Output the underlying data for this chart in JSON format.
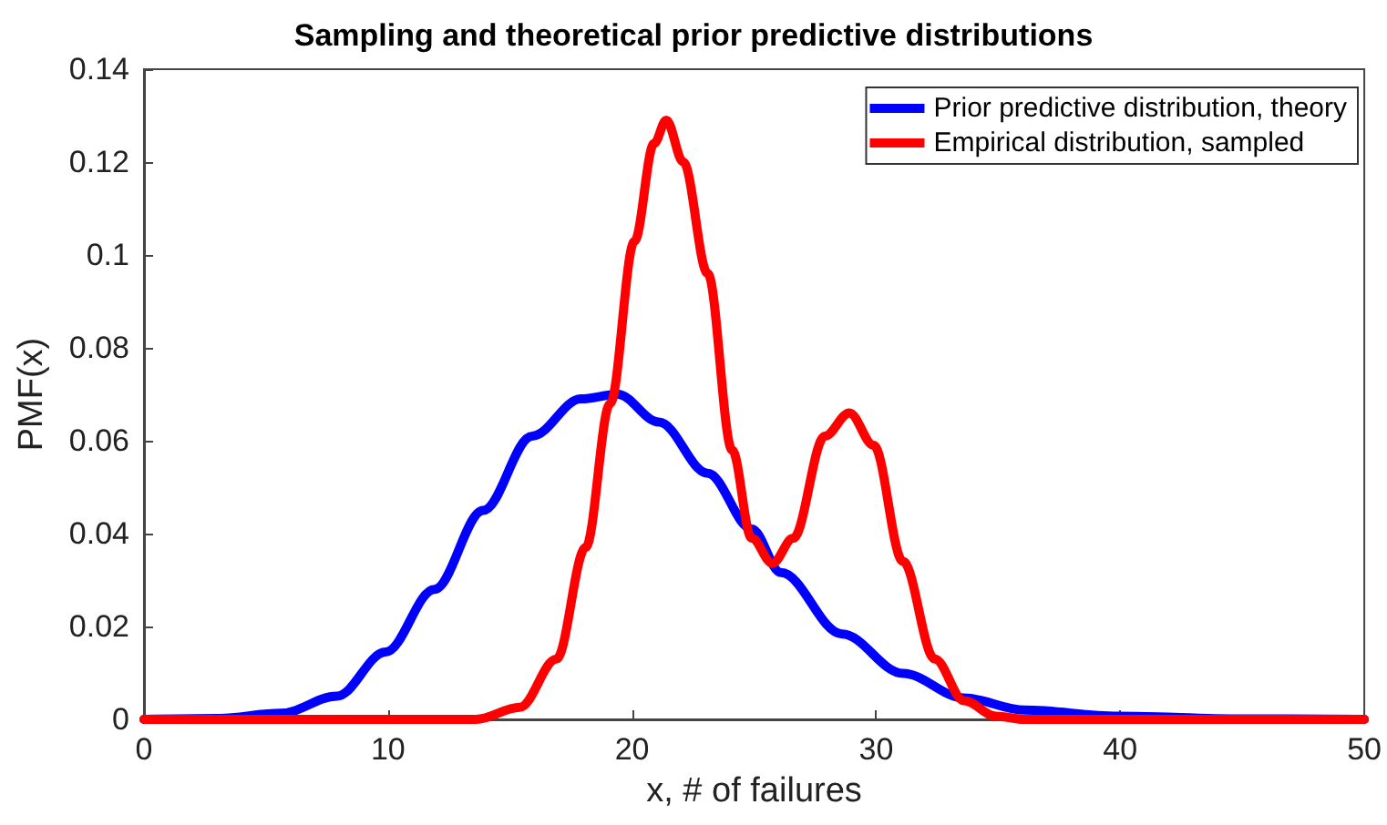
{
  "chart_data": {
    "type": "line",
    "title": "Sampling and theoretical prior predictive distributions",
    "xlabel": "x, # of failures",
    "ylabel": "PMF(x)",
    "xlim": [
      0,
      50
    ],
    "xticks": [
      0,
      10,
      20,
      30,
      40,
      50
    ],
    "ylim": [
      0,
      0.14
    ],
    "yticks": [
      0,
      0.02,
      0.04,
      0.06,
      0.08,
      0.1,
      0.12,
      0.14
    ],
    "grid": false,
    "legend": "top right",
    "marker": "none",
    "line_style": "solid",
    "series": [
      {
        "name": "Prior predictive distribution, theory",
        "color": "#0000ff",
        "x": [
          0,
          3,
          5.6,
          7.9,
          9.9,
          11.9,
          13.9,
          15.9,
          17.9,
          19.4,
          21.1,
          23.1,
          24.9,
          26.1,
          28.6,
          31.1,
          33.6,
          36.1,
          39.9,
          45,
          50
        ],
        "values": [
          0,
          0.0002,
          0.0013,
          0.005,
          0.0145,
          0.028,
          0.045,
          0.061,
          0.069,
          0.07,
          0.064,
          0.053,
          0.041,
          0.0316,
          0.0184,
          0.0099,
          0.0046,
          0.002,
          0.0007,
          0.0001,
          0
        ]
      },
      {
        "name": "Empirical distribution, sampled",
        "color": "#ff0000",
        "x": [
          0,
          13.6,
          15.4,
          16.9,
          18.1,
          19.1,
          20.1,
          20.9,
          21.4,
          22.1,
          23.1,
          24.1,
          24.9,
          25.75,
          26.6,
          27.9,
          28.9,
          29.9,
          31.1,
          32.4,
          33.6,
          34.9,
          36.1,
          50
        ],
        "values": [
          0,
          0,
          0.0026,
          0.013,
          0.037,
          0.068,
          0.103,
          0.124,
          0.129,
          0.12,
          0.096,
          0.058,
          0.039,
          0.0336,
          0.039,
          0.061,
          0.066,
          0.059,
          0.034,
          0.013,
          0.004,
          0.0007,
          0,
          0
        ]
      }
    ]
  }
}
